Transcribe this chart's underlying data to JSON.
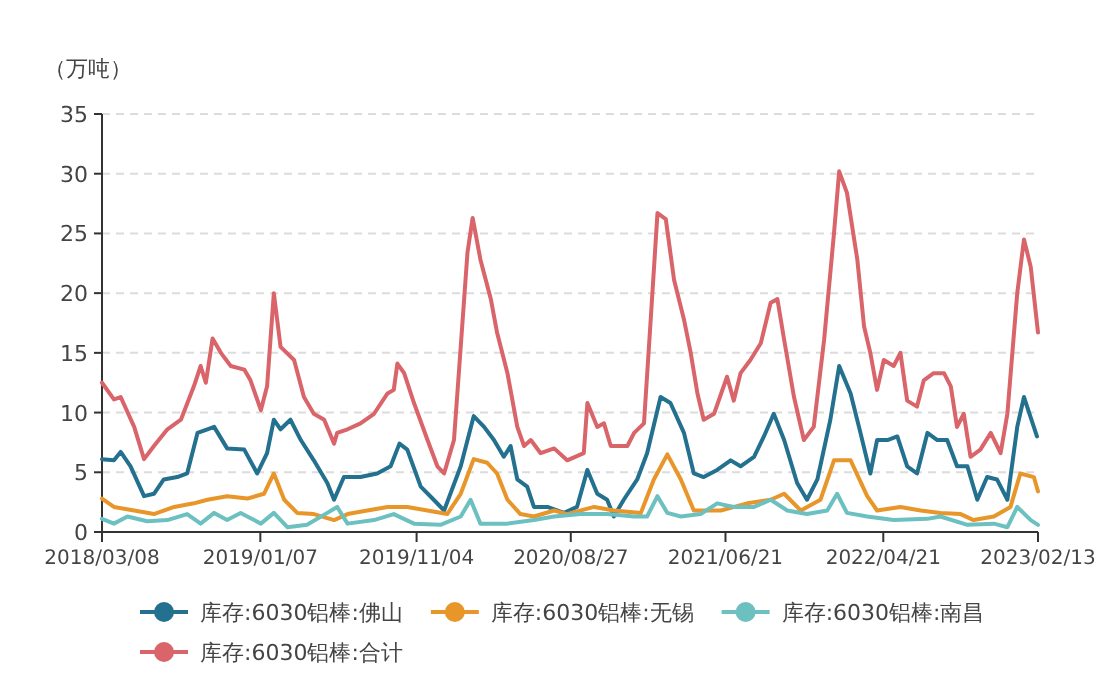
{
  "chart_data": {
    "type": "line",
    "ylabel": "（万吨）",
    "xlim": [
      "2018-03-08",
      "2023-02-13"
    ],
    "xticks": [
      {
        "value": "2018-03-08",
        "label": "2018/03/08"
      },
      {
        "value": "2019-01-07",
        "label": "2019/01/07"
      },
      {
        "value": "2019-11-04",
        "label": "2019/11/04"
      },
      {
        "value": "2020-08-27",
        "label": "2020/08/27"
      },
      {
        "value": "2021-06-21",
        "label": "2021/06/21"
      },
      {
        "value": "2022-04-21",
        "label": "2022/04/21"
      },
      {
        "value": "2023-02-13",
        "label": "2023/02/13"
      }
    ],
    "ylim": [
      0,
      35
    ],
    "yticks": [
      0,
      5,
      10,
      15,
      20,
      25,
      30,
      35
    ],
    "grid": "y",
    "legend": "bottom",
    "series": [
      {
        "name": "库存:6030铝棒:佛山",
        "color": "#23708f",
        "x": [
          "2018-03-08",
          "2018-03-31",
          "2018-04-13",
          "2018-05-02",
          "2018-05-28",
          "2018-06-16",
          "2018-07-05",
          "2018-07-31",
          "2018-08-19",
          "2018-09-08",
          "2018-09-27",
          "2018-10-10",
          "2018-11-04",
          "2018-12-07",
          "2019-01-01",
          "2019-01-20",
          "2019-02-02",
          "2019-02-15",
          "2019-03-06",
          "2019-03-26",
          "2019-04-20",
          "2019-05-16",
          "2019-05-29",
          "2019-06-17",
          "2019-07-19",
          "2019-08-20",
          "2019-09-15",
          "2019-10-02",
          "2019-10-17",
          "2019-11-12",
          "2019-12-07",
          "2019-12-27",
          "2020-01-28",
          "2020-02-22",
          "2020-03-13",
          "2020-04-01",
          "2020-04-20",
          "2020-05-03",
          "2020-05-16",
          "2020-06-04",
          "2020-06-17",
          "2020-07-13",
          "2020-08-14",
          "2020-09-08",
          "2020-09-28",
          "2020-10-17",
          "2020-11-05",
          "2020-11-18",
          "2020-12-07",
          "2021-01-02",
          "2021-01-21",
          "2021-02-16",
          "2021-03-07",
          "2021-04-02",
          "2021-04-21",
          "2021-05-10",
          "2021-06-05",
          "2021-07-01",
          "2021-07-20",
          "2021-08-15",
          "2021-09-03",
          "2021-09-22",
          "2021-10-12",
          "2021-11-06",
          "2021-11-25",
          "2021-12-15",
          "2022-01-09",
          "2022-01-26",
          "2022-02-17",
          "2022-03-08",
          "2022-03-27",
          "2022-04-09",
          "2022-04-29",
          "2022-05-18",
          "2022-06-06",
          "2022-06-25",
          "2022-07-15",
          "2022-08-03",
          "2022-08-22",
          "2022-09-10",
          "2022-09-30",
          "2022-10-19",
          "2022-11-07",
          "2022-11-26",
          "2022-12-16",
          "2023-01-04",
          "2023-01-17",
          "2023-02-11"
        ],
        "values": [
          6.1,
          6.0,
          6.7,
          5.5,
          3.0,
          3.2,
          4.4,
          4.6,
          4.9,
          8.3,
          8.6,
          8.8,
          7.0,
          6.9,
          4.9,
          6.6,
          9.4,
          8.6,
          9.4,
          7.7,
          6.0,
          4.1,
          2.7,
          4.6,
          4.6,
          4.9,
          5.5,
          7.4,
          6.9,
          3.8,
          2.7,
          1.8,
          5.5,
          9.7,
          8.8,
          7.7,
          6.3,
          7.2,
          4.4,
          3.8,
          2.1,
          2.1,
          1.6,
          2.1,
          5.2,
          3.2,
          2.7,
          1.3,
          2.7,
          4.4,
          6.6,
          11.3,
          10.8,
          8.3,
          4.9,
          4.6,
          5.2,
          6.0,
          5.5,
          6.3,
          8.0,
          9.9,
          7.7,
          4.1,
          2.7,
          4.4,
          9.4,
          13.9,
          11.6,
          8.3,
          4.9,
          7.7,
          7.7,
          8.0,
          5.5,
          4.9,
          8.3,
          7.7,
          7.7,
          5.5,
          5.5,
          2.7,
          4.6,
          4.4,
          2.7,
          8.8,
          11.3,
          8.0
        ]
      },
      {
        "name": "库存:6030铝棒:无锡",
        "color": "#e8962a",
        "x": [
          "2018-03-08",
          "2018-03-31",
          "2018-05-09",
          "2018-06-16",
          "2018-07-25",
          "2018-09-01",
          "2018-09-27",
          "2018-11-04",
          "2018-12-13",
          "2019-01-14",
          "2019-02-02",
          "2019-02-22",
          "2019-03-19",
          "2019-04-20",
          "2019-05-29",
          "2019-06-24",
          "2019-08-01",
          "2019-09-09",
          "2019-10-17",
          "2019-11-25",
          "2020-01-02",
          "2020-01-28",
          "2020-02-22",
          "2020-03-19",
          "2020-04-07",
          "2020-04-27",
          "2020-05-22",
          "2020-06-17",
          "2020-07-26",
          "2020-08-20",
          "2020-10-11",
          "2020-11-18",
          "2021-01-09",
          "2021-02-03",
          "2021-03-01",
          "2021-03-27",
          "2021-04-21",
          "2021-06-12",
          "2021-08-02",
          "2021-09-16",
          "2021-10-12",
          "2021-11-13",
          "2021-12-21",
          "2022-01-16",
          "2022-02-17",
          "2022-03-21",
          "2022-04-09",
          "2022-05-24",
          "2022-07-02",
          "2022-08-09",
          "2022-09-17",
          "2022-10-12",
          "2022-11-20",
          "2022-12-22",
          "2023-01-10",
          "2023-02-05",
          "2023-02-13"
        ],
        "values": [
          2.8,
          2.1,
          1.8,
          1.5,
          2.1,
          2.4,
          2.7,
          3.0,
          2.8,
          3.2,
          4.9,
          2.7,
          1.6,
          1.5,
          1.0,
          1.5,
          1.8,
          2.1,
          2.1,
          1.8,
          1.5,
          3.2,
          6.1,
          5.8,
          4.9,
          2.7,
          1.5,
          1.3,
          1.8,
          1.5,
          2.1,
          1.8,
          1.6,
          4.4,
          6.5,
          4.4,
          1.8,
          1.8,
          2.4,
          2.7,
          3.2,
          1.8,
          2.7,
          6.0,
          6.0,
          3.0,
          1.8,
          2.1,
          1.8,
          1.6,
          1.5,
          1.0,
          1.3,
          2.1,
          4.9,
          4.6,
          3.4
        ]
      },
      {
        "name": "库存:6030铝棒:南昌",
        "color": "#6cc0c0",
        "x": [
          "2018-03-08",
          "2018-03-31",
          "2018-04-26",
          "2018-06-03",
          "2018-07-12",
          "2018-08-19",
          "2018-09-14",
          "2018-10-10",
          "2018-11-04",
          "2018-11-30",
          "2019-01-08",
          "2019-02-02",
          "2019-02-28",
          "2019-04-07",
          "2019-05-16",
          "2019-06-04",
          "2019-06-24",
          "2019-08-14",
          "2019-09-21",
          "2019-10-30",
          "2019-12-20",
          "2020-01-28",
          "2020-02-16",
          "2020-03-06",
          "2020-04-27",
          "2020-06-17",
          "2020-07-26",
          "2020-09-15",
          "2020-11-05",
          "2020-12-27",
          "2021-01-21",
          "2021-02-10",
          "2021-03-01",
          "2021-03-27",
          "2021-05-04",
          "2021-06-05",
          "2021-07-07",
          "2021-08-15",
          "2021-09-16",
          "2021-10-18",
          "2021-11-25",
          "2022-01-03",
          "2022-01-22",
          "2022-02-10",
          "2022-03-21",
          "2022-05-11",
          "2022-07-15",
          "2022-08-09",
          "2022-09-30",
          "2022-11-20",
          "2022-12-16",
          "2023-01-04",
          "2023-01-30",
          "2023-02-13"
        ],
        "values": [
          1.1,
          0.7,
          1.3,
          0.9,
          1.0,
          1.5,
          0.7,
          1.6,
          1.0,
          1.6,
          0.7,
          1.6,
          0.4,
          0.6,
          1.6,
          2.1,
          0.7,
          1.0,
          1.5,
          0.7,
          0.6,
          1.3,
          2.7,
          0.7,
          0.7,
          1.0,
          1.3,
          1.5,
          1.5,
          1.3,
          1.3,
          3.0,
          1.6,
          1.3,
          1.5,
          2.4,
          2.1,
          2.1,
          2.7,
          1.8,
          1.5,
          1.8,
          3.2,
          1.6,
          1.3,
          1.0,
          1.1,
          1.3,
          0.6,
          0.7,
          0.4,
          2.1,
          1.0,
          0.6
        ]
      },
      {
        "name": "库存:6030铝棒:合计",
        "color": "#d9646a",
        "x": [
          "2018-03-08",
          "2018-03-31",
          "2018-04-13",
          "2018-05-09",
          "2018-05-28",
          "2018-06-16",
          "2018-07-12",
          "2018-08-07",
          "2018-09-01",
          "2018-09-14",
          "2018-09-24",
          "2018-10-07",
          "2018-10-23",
          "2018-11-11",
          "2018-12-07",
          "2018-12-19",
          "2019-01-08",
          "2019-01-20",
          "2019-02-02",
          "2019-02-15",
          "2019-03-13",
          "2019-04-01",
          "2019-04-20",
          "2019-05-10",
          "2019-05-29",
          "2019-06-04",
          "2019-06-24",
          "2019-07-19",
          "2019-08-14",
          "2019-09-09",
          "2019-09-21",
          "2019-09-28",
          "2019-10-11",
          "2019-10-30",
          "2019-11-25",
          "2019-12-14",
          "2019-12-27",
          "2020-01-15",
          "2020-01-28",
          "2020-02-10",
          "2020-02-20",
          "2020-03-06",
          "2020-03-26",
          "2020-04-07",
          "2020-04-27",
          "2020-05-16",
          "2020-05-29",
          "2020-06-11",
          "2020-06-30",
          "2020-07-26",
          "2020-08-20",
          "2020-09-21",
          "2020-09-28",
          "2020-10-17",
          "2020-10-30",
          "2020-11-12",
          "2020-12-14",
          "2020-12-27",
          "2021-01-15",
          "2021-01-28",
          "2021-02-10",
          "2021-02-26",
          "2021-03-14",
          "2021-04-02",
          "2021-04-15",
          "2021-04-28",
          "2021-05-10",
          "2021-05-30",
          "2021-06-24",
          "2021-07-07",
          "2021-07-20",
          "2021-08-08",
          "2021-08-28",
          "2021-09-16",
          "2021-09-29",
          "2021-10-12",
          "2021-10-31",
          "2021-11-19",
          "2021-12-08",
          "2021-12-28",
          "2022-01-16",
          "2022-01-26",
          "2022-02-10",
          "2022-03-02",
          "2022-03-15",
          "2022-03-27",
          "2022-04-09",
          "2022-04-22",
          "2022-05-11",
          "2022-05-24",
          "2022-06-06",
          "2022-06-25",
          "2022-07-08",
          "2022-07-27",
          "2022-08-16",
          "2022-08-29",
          "2022-09-10",
          "2022-09-23",
          "2022-10-06",
          "2022-10-25",
          "2022-11-14",
          "2022-12-03",
          "2022-12-16",
          "2023-01-04",
          "2023-01-17",
          "2023-01-30",
          "2023-02-13"
        ],
        "values": [
          12.5,
          11.1,
          11.3,
          8.8,
          6.1,
          7.2,
          8.6,
          9.4,
          12.2,
          13.9,
          12.5,
          16.2,
          15.0,
          13.9,
          13.6,
          12.7,
          10.2,
          12.2,
          20.0,
          15.5,
          14.4,
          11.3,
          9.9,
          9.4,
          7.4,
          8.3,
          8.6,
          9.1,
          9.9,
          11.6,
          11.9,
          14.1,
          13.3,
          10.8,
          7.7,
          5.5,
          4.9,
          7.7,
          15.5,
          23.4,
          26.3,
          22.8,
          19.5,
          16.7,
          13.3,
          8.8,
          7.2,
          7.7,
          6.6,
          7.0,
          6.0,
          6.6,
          10.8,
          8.8,
          9.1,
          7.2,
          7.2,
          8.3,
          9.1,
          17.8,
          26.7,
          26.2,
          21.1,
          17.8,
          15.0,
          11.6,
          9.4,
          9.9,
          13.0,
          11.0,
          13.3,
          14.4,
          15.8,
          19.2,
          19.5,
          16.1,
          11.3,
          7.7,
          8.8,
          16.1,
          25.0,
          30.2,
          28.4,
          22.8,
          17.2,
          15.0,
          11.9,
          14.4,
          13.9,
          15.0,
          11.0,
          10.5,
          12.7,
          13.3,
          13.3,
          12.2,
          8.8,
          9.9,
          6.3,
          6.9,
          8.3,
          6.6,
          9.9,
          20.0,
          24.5,
          22.2,
          16.7
        ]
      }
    ]
  }
}
